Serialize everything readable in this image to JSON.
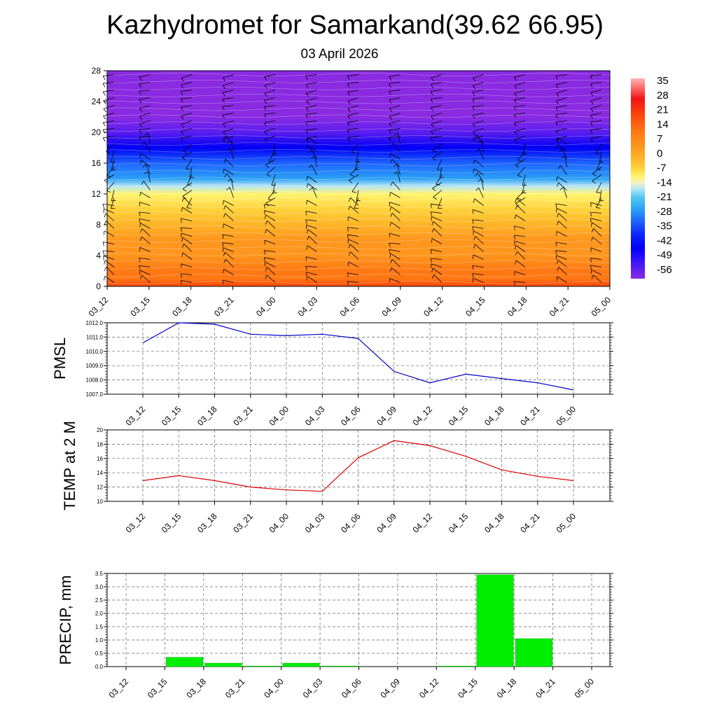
{
  "header": {
    "title": "Kazhydromet for Samarkand(39.62 66.95)",
    "date": "03 April 2026"
  },
  "colors": {
    "pmsl_line": "#0000cc",
    "temp_line": "#dd0000",
    "precip_bar": "#00ee00",
    "precip_bar_edge": "#00aa00",
    "grid": "#666666"
  },
  "chart_data": [
    {
      "id": "cross_section",
      "type": "heatmap",
      "title": "",
      "xlabel": "",
      "ylabel": "",
      "categories": [
        "03_12",
        "03_15",
        "03_18",
        "03_21",
        "04_00",
        "04_03",
        "04_06",
        "04_09",
        "04_12",
        "04_15",
        "04_18",
        "04_21",
        "05_00"
      ],
      "yticks": [
        0,
        4,
        8,
        12,
        16,
        20,
        24,
        28
      ],
      "ylim": [
        0,
        28
      ],
      "colorbar": {
        "labels": [
          "35",
          "28",
          "21",
          "14",
          "7",
          "0",
          "-7",
          "-14",
          "-21",
          "-28",
          "-35",
          "-42",
          "-49",
          "-56"
        ],
        "range": [
          -60,
          38
        ]
      },
      "temperature_profile_by_level": {
        "levels": [
          0,
          1,
          2,
          4,
          6,
          8,
          10,
          12,
          13,
          14,
          16,
          18,
          20,
          22,
          24,
          26,
          28
        ],
        "values": [
          22,
          19,
          16,
          10,
          5,
          1,
          -3,
          -7,
          -16,
          -22,
          -30,
          -45,
          -53,
          -56,
          -57,
          -58,
          -58
        ]
      }
    },
    {
      "id": "pmsl",
      "type": "line",
      "title": "",
      "xlabel": "",
      "ylabel": "PMSL",
      "categories": [
        "03_12",
        "03_15",
        "03_18",
        "03_21",
        "04_00",
        "04_03",
        "04_06",
        "04_09",
        "04_12",
        "04_15",
        "04_18",
        "04_21",
        "05_00"
      ],
      "values": [
        1010.6,
        1012.0,
        1011.9,
        1011.2,
        1011.1,
        1011.2,
        1010.9,
        1008.6,
        1007.8,
        1008.4,
        1008.1,
        1007.8,
        1007.3
      ],
      "yticks": [
        "1007.0",
        "1008.0",
        "1009.0",
        "1010.0",
        "1011.0",
        "1012.0"
      ],
      "ylim": [
        1007.0,
        1012.0
      ]
    },
    {
      "id": "temp",
      "type": "line",
      "title": "",
      "xlabel": "",
      "ylabel": "TEMP at 2 M",
      "categories": [
        "03_12",
        "03_15",
        "03_18",
        "03_21",
        "04_00",
        "04_03",
        "04_06",
        "04_09",
        "04_12",
        "04_15",
        "04_18",
        "04_21",
        "05_00"
      ],
      "values": [
        12.9,
        13.6,
        12.9,
        12.0,
        11.6,
        11.4,
        16.1,
        18.5,
        17.8,
        16.3,
        14.4,
        13.5,
        12.9
      ],
      "yticks": [
        "10",
        "12",
        "14",
        "16",
        "18",
        "20"
      ],
      "ylim": [
        10,
        20
      ]
    },
    {
      "id": "precip",
      "type": "bar",
      "title": "",
      "xlabel": "",
      "ylabel": "PRECIP, mm",
      "categories": [
        "03_12",
        "03_15",
        "03_18",
        "03_21",
        "04_00",
        "04_03",
        "04_06",
        "04_09",
        "04_12",
        "04_15",
        "04_18",
        "04_21",
        "05_00"
      ],
      "values": [
        0,
        0.35,
        0.13,
        0.02,
        0.13,
        0.02,
        0,
        0,
        0.02,
        3.45,
        1.05,
        0,
        0
      ],
      "yticks": [
        "0.0",
        "0.5",
        "1.0",
        "1.5",
        "2.0",
        "2.5",
        "3.0",
        "3.5"
      ],
      "ylim": [
        0,
        3.5
      ]
    }
  ]
}
